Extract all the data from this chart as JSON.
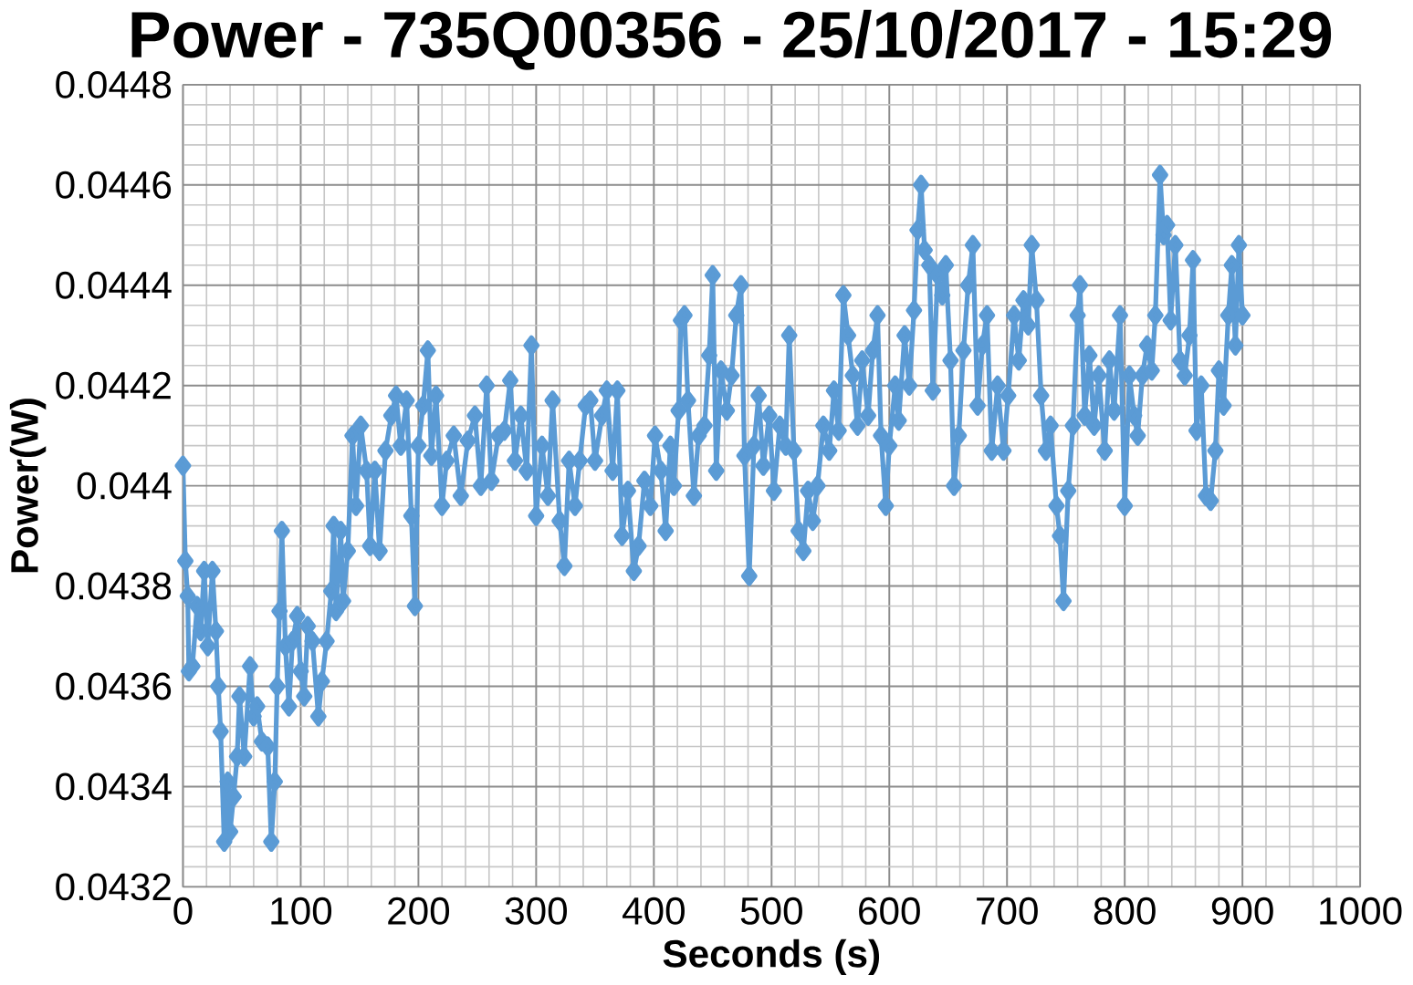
{
  "chart_data": {
    "type": "line",
    "title": "Power - 735Q00356 - 25/10/2017 - 15:29",
    "xlabel": "Seconds (s)",
    "ylabel": "Power(W)",
    "xlim": [
      0,
      1000
    ],
    "xticks": [
      0,
      100,
      200,
      300,
      400,
      500,
      600,
      700,
      800,
      900,
      1000
    ],
    "ylim": [
      0.0432,
      0.0448
    ],
    "yticks": [
      0.0432,
      0.0434,
      0.0436,
      0.0438,
      0.044,
      0.0442,
      0.0444,
      0.0446,
      0.0448
    ],
    "grid": true,
    "legend": false,
    "marker": "diamond",
    "line_style": "solid",
    "series": [
      {
        "color": "#5b9bd5",
        "x": [
          0,
          2,
          4,
          5,
          8,
          12,
          15,
          18,
          21,
          25,
          28,
          30,
          32,
          35,
          38,
          40,
          43,
          46,
          48,
          52,
          57,
          60,
          63,
          67,
          72,
          75,
          78,
          80,
          82,
          84,
          87,
          90,
          93,
          97,
          100,
          103,
          106,
          110,
          115,
          118,
          122,
          126,
          128,
          130,
          134,
          136,
          140,
          144,
          147,
          151,
          156,
          159,
          163,
          167,
          172,
          177,
          181,
          185,
          190,
          194,
          197,
          200,
          204,
          208,
          211,
          215,
          220,
          224,
          230,
          236,
          242,
          248,
          253,
          258,
          262,
          268,
          273,
          278,
          282,
          287,
          292,
          296,
          300,
          305,
          310,
          314,
          320,
          324,
          328,
          333,
          337,
          342,
          346,
          350,
          356,
          360,
          365,
          369,
          373,
          378,
          383,
          387,
          392,
          397,
          401,
          406,
          410,
          414,
          417,
          421,
          423,
          426,
          429,
          434,
          438,
          443,
          447,
          450,
          453,
          457,
          462,
          466,
          470,
          474,
          477,
          481,
          485,
          489,
          493,
          498,
          502,
          507,
          512,
          515,
          519,
          523,
          527,
          531,
          535,
          539,
          544,
          549,
          553,
          557,
          561,
          565,
          569,
          573,
          577,
          582,
          586,
          590,
          593,
          597,
          600,
          605,
          608,
          613,
          617,
          621,
          624,
          627,
          630,
          634,
          637,
          641,
          645,
          648,
          652,
          655,
          659,
          663,
          667,
          671,
          675,
          679,
          683,
          687,
          692,
          697,
          701,
          706,
          710,
          714,
          718,
          721,
          725,
          729,
          733,
          737,
          742,
          745,
          748,
          752,
          756,
          760,
          762,
          766,
          770,
          774,
          778,
          783,
          787,
          791,
          796,
          800,
          804,
          808,
          811,
          815,
          819,
          823,
          826,
          830,
          833,
          836,
          839,
          843,
          847,
          851,
          855,
          858,
          861,
          865,
          869,
          873,
          877,
          880,
          884,
          888,
          891,
          894,
          897,
          900
        ],
        "values": [
          0.04404,
          0.04385,
          0.04378,
          0.04363,
          0.04364,
          0.04376,
          0.04371,
          0.04383,
          0.04368,
          0.04383,
          0.04371,
          0.0436,
          0.04351,
          0.04329,
          0.04341,
          0.04331,
          0.04338,
          0.04346,
          0.04358,
          0.04346,
          0.04364,
          0.04354,
          0.04356,
          0.04349,
          0.04348,
          0.04329,
          0.04341,
          0.0436,
          0.04375,
          0.04391,
          0.04368,
          0.04356,
          0.04369,
          0.04374,
          0.04363,
          0.04358,
          0.04372,
          0.04369,
          0.04354,
          0.04361,
          0.04369,
          0.04379,
          0.04392,
          0.04375,
          0.04391,
          0.04377,
          0.04387,
          0.0441,
          0.04396,
          0.04412,
          0.04403,
          0.04388,
          0.04403,
          0.04387,
          0.04407,
          0.04414,
          0.04418,
          0.04408,
          0.04417,
          0.04394,
          0.04376,
          0.04408,
          0.04416,
          0.04427,
          0.04406,
          0.04418,
          0.04396,
          0.04405,
          0.0441,
          0.04398,
          0.04409,
          0.04414,
          0.044,
          0.0442,
          0.04401,
          0.0441,
          0.04411,
          0.04421,
          0.04405,
          0.04414,
          0.04403,
          0.04428,
          0.04394,
          0.04408,
          0.04398,
          0.04417,
          0.04393,
          0.04384,
          0.04405,
          0.04396,
          0.04405,
          0.04416,
          0.04417,
          0.04405,
          0.04414,
          0.04419,
          0.04403,
          0.04419,
          0.0439,
          0.04399,
          0.04383,
          0.04388,
          0.04401,
          0.04396,
          0.0441,
          0.04403,
          0.04391,
          0.04408,
          0.044,
          0.04415,
          0.04433,
          0.04434,
          0.04417,
          0.04398,
          0.0441,
          0.04412,
          0.04426,
          0.04442,
          0.04403,
          0.04423,
          0.04415,
          0.04422,
          0.04434,
          0.0444,
          0.04406,
          0.04382,
          0.04408,
          0.04418,
          0.04404,
          0.04414,
          0.04399,
          0.04412,
          0.04408,
          0.0443,
          0.04407,
          0.04391,
          0.04387,
          0.04399,
          0.04393,
          0.044,
          0.04412,
          0.04407,
          0.04419,
          0.04411,
          0.04438,
          0.0443,
          0.04422,
          0.04412,
          0.04425,
          0.04414,
          0.04427,
          0.04434,
          0.0441,
          0.04396,
          0.04408,
          0.0442,
          0.04413,
          0.0443,
          0.0442,
          0.04435,
          0.04451,
          0.0446,
          0.04447,
          0.04444,
          0.04419,
          0.04442,
          0.04438,
          0.04444,
          0.04425,
          0.044,
          0.0441,
          0.04427,
          0.0444,
          0.04448,
          0.04416,
          0.04428,
          0.04434,
          0.04407,
          0.0442,
          0.04407,
          0.04418,
          0.04434,
          0.04425,
          0.04437,
          0.04432,
          0.04448,
          0.04437,
          0.04418,
          0.04407,
          0.04412,
          0.04396,
          0.0439,
          0.04377,
          0.04399,
          0.04412,
          0.04434,
          0.0444,
          0.04414,
          0.04426,
          0.04412,
          0.04422,
          0.04407,
          0.04425,
          0.04415,
          0.04434,
          0.04396,
          0.04422,
          0.04414,
          0.0441,
          0.04422,
          0.04428,
          0.04423,
          0.04434,
          0.04462,
          0.0445,
          0.04452,
          0.04433,
          0.04448,
          0.04425,
          0.04422,
          0.0443,
          0.04445,
          0.04411,
          0.0442,
          0.04398,
          0.04397,
          0.04407,
          0.04423,
          0.04416,
          0.04434,
          0.04444,
          0.04428,
          0.04448,
          0.04434
        ]
      }
    ]
  }
}
